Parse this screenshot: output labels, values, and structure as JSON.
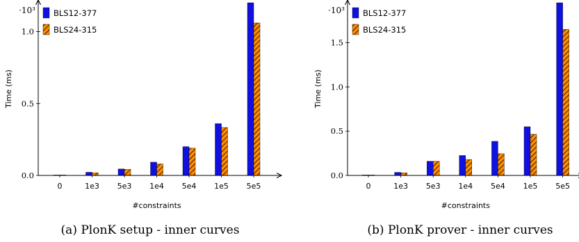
{
  "chart_data": [
    {
      "type": "bar",
      "title": "",
      "caption": "(a) PlonK setup - inner curves",
      "xlabel": "#constraints",
      "ylabel": "Time (ms)",
      "y_multiplier": "·10³",
      "categories": [
        "0",
        "1e3",
        "5e3",
        "1e4",
        "5e4",
        "1e5",
        "5e5"
      ],
      "ylim": [
        0,
        1.2
      ],
      "yticks": [
        0.0,
        0.5,
        1.0
      ],
      "ytick_labels": [
        "0.0",
        "0.5",
        "1.0"
      ],
      "series": [
        {
          "name": "BLS12-377",
          "values": [
            0.003,
            0.022,
            0.045,
            0.092,
            0.2,
            0.36,
            1.2
          ]
        },
        {
          "name": "BLS24-315",
          "values": [
            0.003,
            0.018,
            0.042,
            0.08,
            0.19,
            0.333,
            1.06
          ]
        }
      ],
      "legend": "top-left",
      "grid": false
    },
    {
      "type": "bar",
      "title": "",
      "caption": "(b) PlonK prover - inner curves",
      "xlabel": "#constraints",
      "ylabel": "Time (ms)",
      "y_multiplier": "·10³",
      "categories": [
        "0",
        "1e3",
        "5e3",
        "1e4",
        "5e4",
        "1e5",
        "5e5"
      ],
      "ylim": [
        0,
        1.95
      ],
      "yticks": [
        0.0,
        0.5,
        1.0,
        1.5
      ],
      "ytick_labels": [
        "0.0",
        "0.5",
        "1.0",
        "1.5"
      ],
      "series": [
        {
          "name": "BLS12-377",
          "values": [
            0.005,
            0.035,
            0.16,
            0.225,
            0.385,
            0.55,
            1.95
          ]
        },
        {
          "name": "BLS24-315",
          "values": [
            0.005,
            0.03,
            0.16,
            0.18,
            0.245,
            0.465,
            1.65
          ]
        }
      ],
      "legend": "top-left",
      "grid": false
    }
  ],
  "colors": {
    "series_1": "#1010e0",
    "series_2": "#ff8c00",
    "hatch": "#000000"
  }
}
